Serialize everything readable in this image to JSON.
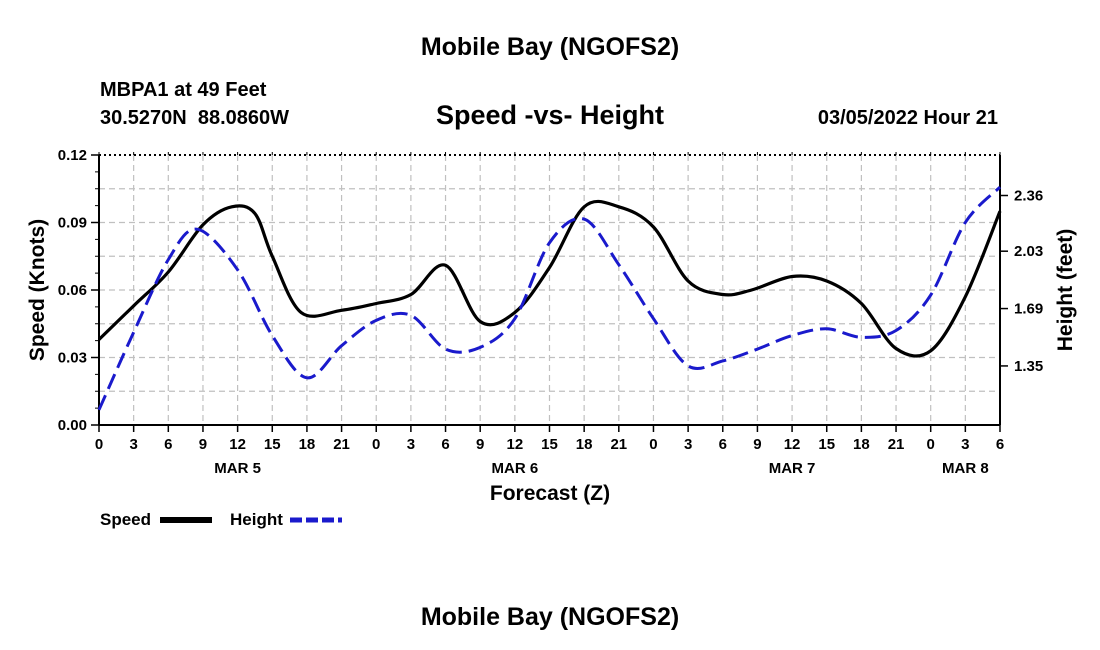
{
  "chart_data": {
    "type": "line",
    "title": "Mobile Bay (NGOFS2)",
    "subtitle": "Speed -vs- Height",
    "station": "MBPA1 at 49 Feet",
    "coords": "30.5270N  88.0860W",
    "datetime": "03/05/2022 Hour 21",
    "xlabel": "Forecast (Z)",
    "ylabel": "Speed (Knots)",
    "y2label": "Height (feet)",
    "xlim": [
      0,
      78
    ],
    "ylim": [
      0.0,
      0.12
    ],
    "y2lim": [
      1.0,
      2.6
    ],
    "x_tick_values": [
      0,
      3,
      6,
      9,
      12,
      15,
      18,
      21,
      24,
      27,
      30,
      33,
      36,
      39,
      42,
      45,
      48,
      51,
      54,
      57,
      60,
      63,
      66,
      69,
      72,
      75,
      78
    ],
    "x_tick_labels": [
      "0",
      "3",
      "6",
      "9",
      "12",
      "15",
      "18",
      "21",
      "0",
      "3",
      "6",
      "9",
      "12",
      "15",
      "18",
      "21",
      "0",
      "3",
      "6",
      "9",
      "12",
      "15",
      "18",
      "21",
      "0",
      "3",
      "6"
    ],
    "date_labels": [
      {
        "text": "MAR 5",
        "x": 12
      },
      {
        "text": "MAR 6",
        "x": 36
      },
      {
        "text": "MAR 7",
        "x": 60
      },
      {
        "text": "MAR 8",
        "x": 75
      }
    ],
    "y_ticks": [
      "0.00",
      "0.03",
      "0.06",
      "0.09",
      "0.12"
    ],
    "y_tick_values": [
      0.0,
      0.03,
      0.06,
      0.09,
      0.12
    ],
    "y2_ticks": [
      "1.35",
      "1.69",
      "2.03",
      "2.36"
    ],
    "y2_tick_values": [
      1.35,
      1.69,
      2.03,
      2.36
    ],
    "series": [
      {
        "name": "Speed",
        "axis": "left",
        "color": "#000000",
        "dash": "solid",
        "x": [
          0,
          3,
          6,
          9,
          11.5,
          13.5,
          15,
          17.5,
          21,
          24,
          27,
          30,
          33,
          36,
          39,
          42,
          45,
          48,
          51,
          54,
          56.5,
          60,
          63,
          66,
          69,
          72,
          75,
          78
        ],
        "values": [
          0.038,
          0.053,
          0.068,
          0.089,
          0.097,
          0.094,
          0.075,
          0.05,
          0.051,
          0.054,
          0.058,
          0.071,
          0.046,
          0.05,
          0.07,
          0.097,
          0.097,
          0.088,
          0.064,
          0.058,
          0.06,
          0.066,
          0.064,
          0.054,
          0.034,
          0.033,
          0.057,
          0.095
        ]
      },
      {
        "name": "Height",
        "axis": "right",
        "color": "#1a1acc",
        "dash": "dashed",
        "x": [
          0,
          3,
          6,
          8.5,
          12,
          15,
          18,
          21,
          24,
          27,
          30,
          33,
          36,
          39,
          42,
          45,
          48,
          51,
          54,
          57,
          60,
          63,
          66,
          69,
          72,
          75,
          78
        ],
        "values": [
          1.09,
          1.55,
          1.98,
          2.16,
          1.92,
          1.53,
          1.28,
          1.47,
          1.62,
          1.65,
          1.45,
          1.46,
          1.63,
          2.08,
          2.22,
          1.95,
          1.63,
          1.35,
          1.38,
          1.45,
          1.53,
          1.57,
          1.52,
          1.56,
          1.77,
          2.2,
          2.41
        ]
      }
    ],
    "legend_position": "bottom-left",
    "grid": true
  },
  "footer_title": "Mobile Bay (NGOFS2)",
  "legend": [
    {
      "label": "Speed"
    },
    {
      "label": "Height"
    }
  ]
}
